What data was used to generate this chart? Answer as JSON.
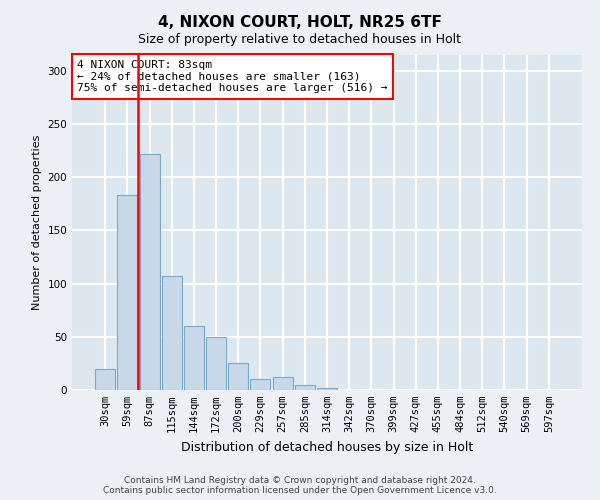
{
  "title": "4, NIXON COURT, HOLT, NR25 6TF",
  "subtitle": "Size of property relative to detached houses in Holt",
  "xlabel": "Distribution of detached houses by size in Holt",
  "ylabel": "Number of detached properties",
  "bar_labels": [
    "30sqm",
    "59sqm",
    "87sqm",
    "115sqm",
    "144sqm",
    "172sqm",
    "200sqm",
    "229sqm",
    "257sqm",
    "285sqm",
    "314sqm",
    "342sqm",
    "370sqm",
    "399sqm",
    "427sqm",
    "455sqm",
    "484sqm",
    "512sqm",
    "540sqm",
    "569sqm",
    "597sqm"
  ],
  "bar_heights": [
    20,
    183,
    222,
    107,
    60,
    50,
    25,
    10,
    12,
    5,
    2,
    0,
    0,
    0,
    0,
    0,
    0,
    0,
    0,
    0,
    0
  ],
  "bar_color": "#c8d8e8",
  "bar_edge_color": "#7aaac8",
  "vline_color": "red",
  "vline_x": 1.5,
  "annotation_text": "4 NIXON COURT: 83sqm\n← 24% of detached houses are smaller (163)\n75% of semi-detached houses are larger (516) →",
  "annotation_box_color": "white",
  "annotation_box_edgecolor": "red",
  "footer_line1": "Contains HM Land Registry data © Crown copyright and database right 2024.",
  "footer_line2": "Contains public sector information licensed under the Open Government Licence v3.0.",
  "bg_color": "#edf1f5",
  "plot_bg_color": "#dde7f0",
  "grid_color": "white",
  "ylim": [
    0,
    315
  ],
  "yticks": [
    0,
    50,
    100,
    150,
    200,
    250,
    300
  ],
  "title_fontsize": 11,
  "subtitle_fontsize": 9,
  "ylabel_fontsize": 8,
  "xlabel_fontsize": 9,
  "tick_fontsize": 7.5,
  "footer_fontsize": 6.5,
  "annotation_fontsize": 8
}
